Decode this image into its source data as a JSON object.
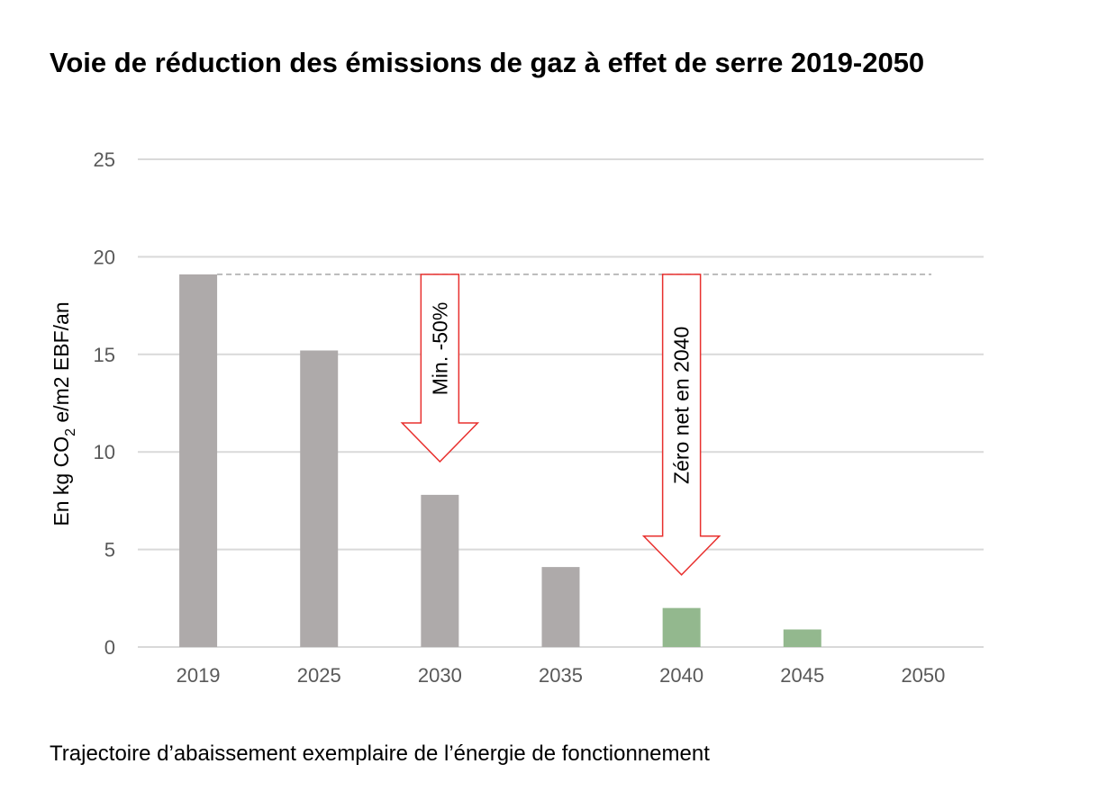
{
  "chart_data": {
    "type": "bar",
    "title": "Voie de réduction des émissions de gaz à effet de serre 2019-2050",
    "caption": "Trajectoire d’abaissement exemplaire de l’énergie de fonctionnement",
    "ylabel_parts": [
      "En kg CO",
      "2",
      " e/m2 EBF/an"
    ],
    "categories": [
      "2019",
      "2025",
      "2030",
      "2035",
      "2040",
      "2045",
      "2050"
    ],
    "values": [
      19.1,
      15.2,
      7.8,
      4.1,
      2.0,
      0.9,
      0
    ],
    "bar_colors": [
      "#aeaaaa",
      "#aeaaaa",
      "#aeaaaa",
      "#aeaaaa",
      "#93b88e",
      "#93b88e",
      "#93b88e"
    ],
    "ylim": [
      0,
      25
    ],
    "yticks": [
      0,
      5,
      10,
      15,
      20,
      25
    ],
    "grid": true,
    "reference_line": {
      "value": 19.1,
      "style": "dashed"
    },
    "annotations": [
      {
        "label": "Min. -50%",
        "category": "2030",
        "from": 19.1,
        "to": 9.5
      },
      {
        "label": "Zéro net en 2040",
        "category": "2040",
        "from": 19.1,
        "to": 3.7
      }
    ],
    "arrow_color": "#e8302e"
  }
}
